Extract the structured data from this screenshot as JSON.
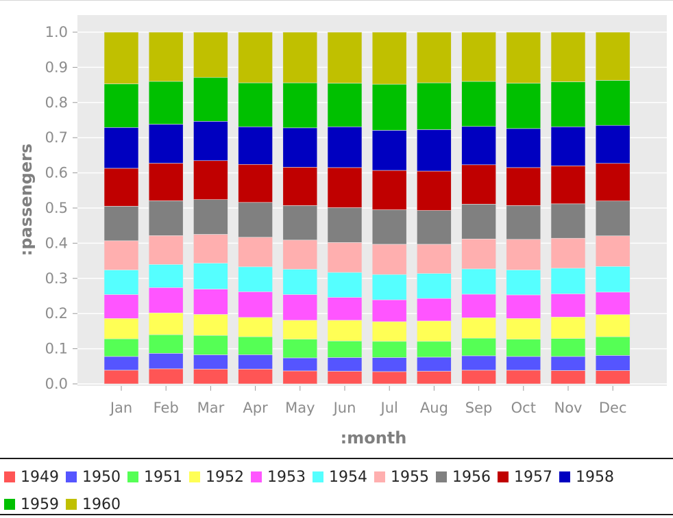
{
  "chart_data": {
    "type": "bar",
    "stacked": true,
    "normalized": true,
    "xlabel": ":month",
    "ylabel": ":passengers",
    "ylim": [
      0,
      1
    ],
    "yticks": [
      "0.0",
      "0.1",
      "0.2",
      "0.3",
      "0.4",
      "0.5",
      "0.6",
      "0.7",
      "0.8",
      "0.9",
      "1.0"
    ],
    "grid": true,
    "legend_position": "bottom",
    "categories": [
      "Jan",
      "Feb",
      "Mar",
      "Apr",
      "May",
      "Jun",
      "Jul",
      "Aug",
      "Sep",
      "Oct",
      "Nov",
      "Dec"
    ],
    "series": [
      {
        "name": "1949",
        "color": "#ff5555",
        "values": [
          0.039,
          0.043,
          0.042,
          0.042,
          0.037,
          0.036,
          0.035,
          0.036,
          0.039,
          0.039,
          0.038,
          0.038
        ]
      },
      {
        "name": "1950",
        "color": "#5555ff",
        "values": [
          0.039,
          0.044,
          0.041,
          0.041,
          0.037,
          0.039,
          0.04,
          0.04,
          0.041,
          0.039,
          0.04,
          0.043
        ]
      },
      {
        "name": "1951",
        "color": "#55ff55",
        "values": [
          0.05,
          0.053,
          0.055,
          0.051,
          0.053,
          0.047,
          0.046,
          0.045,
          0.05,
          0.049,
          0.051,
          0.053
        ]
      },
      {
        "name": "1952",
        "color": "#ffff55",
        "values": [
          0.058,
          0.062,
          0.06,
          0.055,
          0.054,
          0.059,
          0.056,
          0.058,
          0.058,
          0.059,
          0.061,
          0.063
        ]
      },
      {
        "name": "1953",
        "color": "#ff55ff",
        "values": [
          0.068,
          0.072,
          0.072,
          0.073,
          0.073,
          0.065,
          0.062,
          0.064,
          0.067,
          0.067,
          0.066,
          0.064
        ]
      },
      {
        "name": "1954",
        "color": "#55ffff",
        "values": [
          0.07,
          0.066,
          0.074,
          0.071,
          0.072,
          0.071,
          0.072,
          0.071,
          0.072,
          0.071,
          0.073,
          0.073
        ]
      },
      {
        "name": "1955",
        "color": "#ffafaf",
        "values": [
          0.083,
          0.082,
          0.082,
          0.084,
          0.083,
          0.085,
          0.086,
          0.083,
          0.085,
          0.087,
          0.085,
          0.087
        ]
      },
      {
        "name": "1956",
        "color": "#808080",
        "values": [
          0.098,
          0.099,
          0.099,
          0.099,
          0.098,
          0.099,
          0.098,
          0.096,
          0.099,
          0.096,
          0.098,
          0.099
        ]
      },
      {
        "name": "1957",
        "color": "#c00000",
        "values": [
          0.108,
          0.107,
          0.111,
          0.108,
          0.109,
          0.114,
          0.112,
          0.112,
          0.112,
          0.108,
          0.108,
          0.107
        ]
      },
      {
        "name": "1958",
        "color": "#0000c0",
        "values": [
          0.116,
          0.111,
          0.112,
          0.107,
          0.112,
          0.116,
          0.114,
          0.118,
          0.109,
          0.111,
          0.111,
          0.108
        ]
      },
      {
        "name": "1959",
        "color": "#00c000",
        "values": [
          0.124,
          0.122,
          0.125,
          0.125,
          0.128,
          0.124,
          0.131,
          0.133,
          0.128,
          0.129,
          0.128,
          0.128
        ]
      },
      {
        "name": "1960",
        "color": "#c0c000",
        "values": [
          0.147,
          0.14,
          0.129,
          0.144,
          0.144,
          0.145,
          0.148,
          0.144,
          0.14,
          0.145,
          0.141,
          0.137
        ]
      }
    ]
  }
}
